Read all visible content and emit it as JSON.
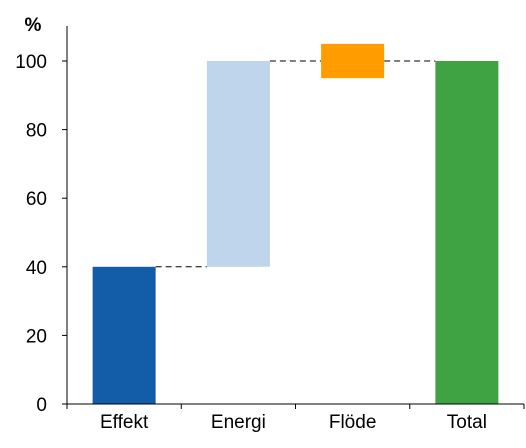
{
  "chart_data": {
    "type": "bar",
    "subtype": "waterfall",
    "ylabel": "%",
    "ylim": [
      0,
      110
    ],
    "yticks": [
      0,
      20,
      40,
      60,
      80,
      100
    ],
    "grid": false,
    "categories": [
      "Effekt",
      "Energi",
      "Flöde",
      "Total"
    ],
    "bars": [
      {
        "category": "Effekt",
        "start": 0,
        "end": 40,
        "color": "#135CA8"
      },
      {
        "category": "Energi",
        "start": 40,
        "end": 100,
        "color": "#BED5EC"
      },
      {
        "category": "Flöde",
        "start": 95,
        "end": 105,
        "color": "#FF9D00"
      },
      {
        "category": "Total",
        "start": 0,
        "end": 100,
        "color": "#3FA344"
      }
    ],
    "connectors": [
      {
        "from": "Effekt",
        "to": "Energi",
        "value": 40
      },
      {
        "from": "Energi",
        "to": "Flöde",
        "value": 100
      },
      {
        "from": "Flöde",
        "to": "Total",
        "value": 100
      }
    ]
  }
}
